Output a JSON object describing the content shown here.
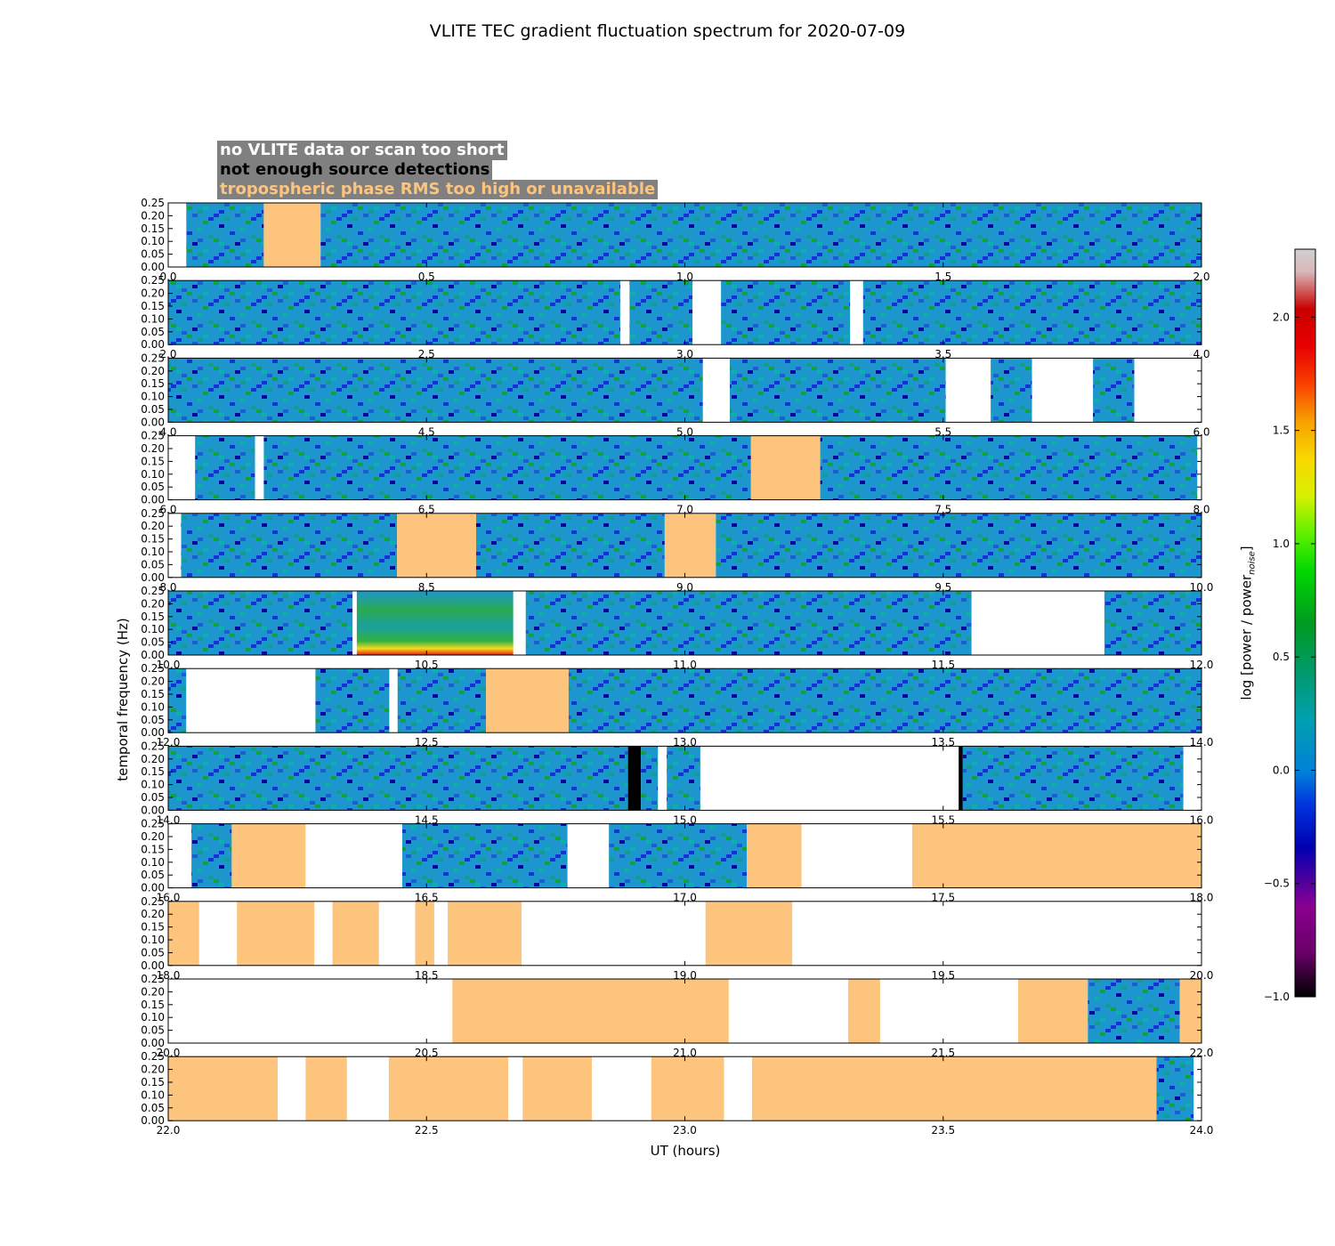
{
  "chart_data": {
    "type": "heatmap",
    "title": "VLITE TEC gradient fluctuation spectrum for 2020-07-09",
    "xlabel": "UT (hours)",
    "ylabel": "temporal frequency (Hz)",
    "colorbar": {
      "label": "log [power / power",
      "label_subscript": "noise",
      "label_end": "]",
      "range": [
        -1.0,
        2.3
      ],
      "ticks": [
        "2.0",
        "1.5",
        "1.0",
        "0.5",
        "0.0",
        "−0.5",
        "−1.0"
      ]
    },
    "y_ticks": [
      "0.25",
      "0.20",
      "0.15",
      "0.10",
      "0.05",
      "0.00"
    ],
    "legend": [
      {
        "label": "no VLITE data or scan too short",
        "text_color": "#ffffff"
      },
      {
        "label": "not enough source detections",
        "text_color": "#000000"
      },
      {
        "label": "tropospheric phase RMS too high or unavailable",
        "text_color": "#fdc47e"
      }
    ],
    "colors": {
      "no_data": "#ffffff",
      "not_enough_detections": "#000000",
      "troposphere_flag": "#fdc47e"
    },
    "panels": [
      {
        "x_range": [
          0,
          2
        ],
        "x_ticks": [
          "0.0",
          "0.5",
          "1.0",
          "1.5",
          "2.0"
        ],
        "segments": [
          [
            0,
            0.035,
            "white"
          ],
          [
            0.035,
            0.185,
            "data"
          ],
          [
            0.185,
            0.295,
            "orange"
          ],
          [
            0.295,
            2.0,
            "data"
          ]
        ]
      },
      {
        "x_range": [
          2,
          4
        ],
        "x_ticks": [
          "2.0",
          "2.5",
          "3.0",
          "3.5",
          "4.0"
        ],
        "segments": [
          [
            2,
            2.875,
            "data"
          ],
          [
            2.875,
            2.893,
            "white"
          ],
          [
            2.893,
            3.015,
            "data"
          ],
          [
            3.015,
            3.07,
            "white"
          ],
          [
            3.07,
            3.32,
            "data"
          ],
          [
            3.32,
            3.345,
            "white"
          ],
          [
            3.345,
            4.0,
            "data"
          ]
        ]
      },
      {
        "x_range": [
          4,
          6
        ],
        "x_ticks": [
          "4.0",
          "4.5",
          "5.0",
          "5.5",
          "6.0"
        ],
        "segments": [
          [
            4,
            5.035,
            "data"
          ],
          [
            5.035,
            5.087,
            "white"
          ],
          [
            5.087,
            5.505,
            "data"
          ],
          [
            5.505,
            5.592,
            "white"
          ],
          [
            5.592,
            5.672,
            "data"
          ],
          [
            5.672,
            5.79,
            "white"
          ],
          [
            5.79,
            5.87,
            "data"
          ],
          [
            5.87,
            6.0,
            "white"
          ]
        ]
      },
      {
        "x_range": [
          6,
          8
        ],
        "x_ticks": [
          "6.0",
          "6.5",
          "7.0",
          "7.5",
          "8.0"
        ],
        "segments": [
          [
            6,
            6.052,
            "white"
          ],
          [
            6.052,
            6.168,
            "data"
          ],
          [
            6.168,
            6.185,
            "white"
          ],
          [
            6.185,
            7.128,
            "data"
          ],
          [
            7.128,
            7.262,
            "orange"
          ],
          [
            7.262,
            7.992,
            "data"
          ],
          [
            7.992,
            8.0,
            "white"
          ]
        ]
      },
      {
        "x_range": [
          8,
          10
        ],
        "x_ticks": [
          "8.0",
          "8.5",
          "9.0",
          "9.5",
          "10.0"
        ],
        "segments": [
          [
            8,
            8.025,
            "white"
          ],
          [
            8.025,
            8.443,
            "data"
          ],
          [
            8.443,
            8.596,
            "orange"
          ],
          [
            8.596,
            8.961,
            "data"
          ],
          [
            8.961,
            9.06,
            "orange"
          ],
          [
            9.06,
            10.0,
            "data"
          ]
        ]
      },
      {
        "x_range": [
          10,
          12
        ],
        "x_ticks": [
          "10.0",
          "10.5",
          "11.0",
          "11.5",
          "12.0"
        ],
        "segments": [
          [
            10,
            10.357,
            "data"
          ],
          [
            10.357,
            10.365,
            "white"
          ],
          [
            10.365,
            10.668,
            "active"
          ],
          [
            10.668,
            10.692,
            "white"
          ],
          [
            10.692,
            11.555,
            "data"
          ],
          [
            11.555,
            11.812,
            "white"
          ],
          [
            11.812,
            12.0,
            "data"
          ]
        ]
      },
      {
        "x_range": [
          12,
          14
        ],
        "x_ticks": [
          "12.0",
          "12.5",
          "13.0",
          "13.5",
          "14.0"
        ],
        "segments": [
          [
            12,
            12.035,
            "data"
          ],
          [
            12.035,
            12.285,
            "white"
          ],
          [
            12.285,
            12.428,
            "data"
          ],
          [
            12.428,
            12.444,
            "white"
          ],
          [
            12.444,
            12.615,
            "data"
          ],
          [
            12.615,
            12.775,
            "orange"
          ],
          [
            12.775,
            14.0,
            "data"
          ]
        ]
      },
      {
        "x_range": [
          14,
          16
        ],
        "x_ticks": [
          "14.0",
          "14.5",
          "15.0",
          "15.5",
          "16.0"
        ],
        "segments": [
          [
            14,
            14.89,
            "data"
          ],
          [
            14.89,
            14.915,
            "black"
          ],
          [
            14.915,
            14.948,
            "data"
          ],
          [
            14.948,
            14.965,
            "white"
          ],
          [
            14.965,
            15.03,
            "data"
          ],
          [
            15.03,
            15.53,
            "white"
          ],
          [
            15.53,
            15.538,
            "black"
          ],
          [
            15.538,
            15.965,
            "data"
          ],
          [
            15.965,
            16.0,
            "white"
          ]
        ]
      },
      {
        "x_range": [
          16,
          18
        ],
        "x_ticks": [
          "16.0",
          "16.5",
          "17.0",
          "17.5",
          "18.0"
        ],
        "segments": [
          [
            16,
            16.045,
            "white"
          ],
          [
            16.045,
            16.123,
            "data"
          ],
          [
            16.123,
            16.266,
            "orange"
          ],
          [
            16.266,
            16.453,
            "white"
          ],
          [
            16.453,
            16.773,
            "data"
          ],
          [
            16.773,
            16.853,
            "white"
          ],
          [
            16.853,
            17.12,
            "data"
          ],
          [
            17.12,
            17.226,
            "orange"
          ],
          [
            17.226,
            17.44,
            "white"
          ],
          [
            17.44,
            18.0,
            "orange"
          ]
        ]
      },
      {
        "x_range": [
          18,
          20
        ],
        "x_ticks": [
          "18.0",
          "18.5",
          "19.0",
          "19.5",
          "20.0"
        ],
        "segments": [
          [
            18,
            18.06,
            "orange"
          ],
          [
            18.06,
            18.133,
            "white"
          ],
          [
            18.133,
            18.283,
            "orange"
          ],
          [
            18.283,
            18.318,
            "white"
          ],
          [
            18.318,
            18.408,
            "orange"
          ],
          [
            18.408,
            18.478,
            "white"
          ],
          [
            18.478,
            18.515,
            "orange"
          ],
          [
            18.515,
            18.541,
            "white"
          ],
          [
            18.541,
            18.684,
            "orange"
          ],
          [
            18.684,
            19.04,
            "white"
          ],
          [
            19.04,
            19.208,
            "orange"
          ],
          [
            19.208,
            20.0,
            "white"
          ]
        ]
      },
      {
        "x_range": [
          20,
          22
        ],
        "x_ticks": [
          "20.0",
          "20.5",
          "21.0",
          "21.5",
          "22.0"
        ],
        "segments": [
          [
            20,
            20.55,
            "white"
          ],
          [
            20.55,
            21.085,
            "orange"
          ],
          [
            21.085,
            21.316,
            "white"
          ],
          [
            21.316,
            21.378,
            "orange"
          ],
          [
            21.378,
            21.645,
            "white"
          ],
          [
            21.645,
            21.78,
            "orange"
          ],
          [
            21.78,
            21.958,
            "data"
          ],
          [
            21.958,
            22.0,
            "orange"
          ]
        ]
      },
      {
        "x_range": [
          22,
          24
        ],
        "x_ticks": [
          "22.0",
          "22.5",
          "23.0",
          "23.5",
          "24.0"
        ],
        "segments": [
          [
            22,
            22.212,
            "orange"
          ],
          [
            22.212,
            22.266,
            "white"
          ],
          [
            22.266,
            22.346,
            "orange"
          ],
          [
            22.346,
            22.427,
            "white"
          ],
          [
            22.427,
            22.658,
            "orange"
          ],
          [
            22.658,
            22.686,
            "white"
          ],
          [
            22.686,
            22.82,
            "orange"
          ],
          [
            22.82,
            22.935,
            "white"
          ],
          [
            22.935,
            23.076,
            "orange"
          ],
          [
            23.076,
            23.13,
            "white"
          ],
          [
            23.13,
            23.913,
            "orange"
          ],
          [
            23.913,
            23.985,
            "data"
          ],
          [
            23.985,
            24.0,
            "white"
          ]
        ]
      }
    ]
  }
}
